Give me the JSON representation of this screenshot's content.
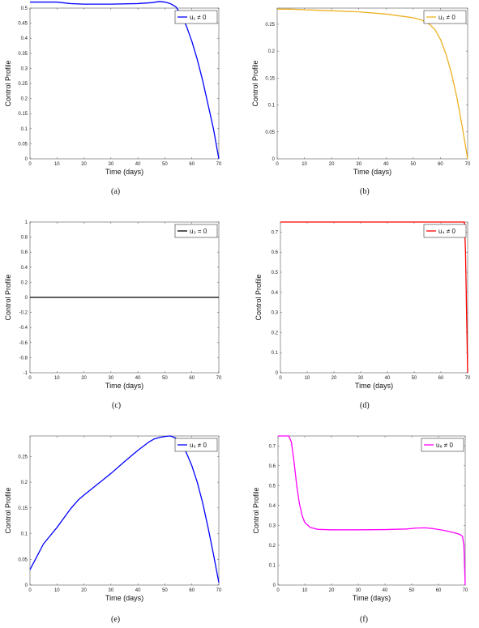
{
  "chart_data": [
    {
      "type": "line",
      "panel_label": "(a)",
      "xlabel": "Time (days)",
      "ylabel": "Control Profile",
      "xlim": [
        0,
        70
      ],
      "ylim": [
        0,
        0.5
      ],
      "xticks": [
        0,
        10,
        20,
        30,
        40,
        50,
        60,
        70
      ],
      "yticks": [
        0,
        0.05,
        0.1,
        0.15,
        0.2,
        0.25,
        0.3,
        0.35,
        0.4,
        0.45,
        0.5
      ],
      "grid": false,
      "legend": "top-right",
      "series": [
        {
          "name": "u₁ ≠ 0",
          "color": "#0000ff",
          "x": [
            0,
            10,
            15,
            20,
            30,
            40,
            45,
            48,
            50,
            52,
            54,
            56,
            58,
            60,
            62,
            64,
            66,
            68,
            70
          ],
          "y": [
            0.52,
            0.52,
            0.515,
            0.513,
            0.513,
            0.515,
            0.518,
            0.522,
            0.52,
            0.515,
            0.505,
            0.48,
            0.44,
            0.39,
            0.33,
            0.26,
            0.18,
            0.1,
            0.0
          ]
        }
      ]
    },
    {
      "type": "line",
      "panel_label": "(b)",
      "xlabel": "Time (days)",
      "ylabel": "Control Profile",
      "xlim": [
        0,
        70
      ],
      "ylim": [
        0,
        0.28
      ],
      "xticks": [
        0,
        10,
        20,
        30,
        40,
        50,
        60,
        70
      ],
      "yticks": [
        0,
        0.05,
        0.1,
        0.15,
        0.2,
        0.25
      ],
      "grid": false,
      "legend": "top-right",
      "series": [
        {
          "name": "u₂ ≠ 0",
          "color": "#edb120",
          "x": [
            0,
            5,
            10,
            20,
            30,
            40,
            50,
            53,
            56,
            58,
            60,
            62,
            64,
            66,
            68,
            70
          ],
          "y": [
            0.278,
            0.278,
            0.277,
            0.275,
            0.273,
            0.269,
            0.262,
            0.258,
            0.25,
            0.24,
            0.222,
            0.195,
            0.16,
            0.115,
            0.06,
            0.0
          ]
        }
      ]
    },
    {
      "type": "line",
      "panel_label": "(c)",
      "xlabel": "Time (days)",
      "ylabel": "Control Profile",
      "xlim": [
        0,
        70
      ],
      "ylim": [
        -1,
        1
      ],
      "xticks": [
        0,
        10,
        20,
        30,
        40,
        50,
        60,
        70
      ],
      "yticks": [
        -1,
        -0.8,
        -0.6,
        -0.4,
        -0.2,
        0,
        0.2,
        0.4,
        0.6,
        0.8,
        1
      ],
      "grid": false,
      "legend": "top-right",
      "series": [
        {
          "name": "u₃ = 0",
          "color": "#000000",
          "x": [
            0,
            70
          ],
          "y": [
            0,
            0
          ]
        }
      ]
    },
    {
      "type": "line",
      "panel_label": "(d)",
      "xlabel": "Time (days)",
      "ylabel": "Control Profile",
      "xlim": [
        0,
        70
      ],
      "ylim": [
        0,
        0.75
      ],
      "xticks": [
        0,
        10,
        20,
        30,
        40,
        50,
        60,
        70
      ],
      "yticks": [
        0,
        0.1,
        0.2,
        0.3,
        0.4,
        0.5,
        0.6,
        0.7
      ],
      "grid": false,
      "legend": "top-right",
      "series": [
        {
          "name": "u₄ ≠ 0",
          "color": "#ff0000",
          "x": [
            0,
            68.8,
            69.2,
            69.6,
            70
          ],
          "y": [
            0.75,
            0.75,
            0.6,
            0.3,
            0.0
          ]
        }
      ]
    },
    {
      "type": "line",
      "panel_label": "(e)",
      "xlabel": "Time (days)",
      "ylabel": "Control Profile",
      "xlim": [
        0,
        70
      ],
      "ylim": [
        0,
        0.29
      ],
      "xticks": [
        0,
        10,
        20,
        30,
        40,
        50,
        60,
        70
      ],
      "yticks": [
        0,
        0.05,
        0.1,
        0.15,
        0.2,
        0.25
      ],
      "grid": false,
      "legend": "top-right",
      "series": [
        {
          "name": "u₅ ≠ 0",
          "color": "#0000ff",
          "x": [
            0,
            2,
            5,
            10,
            15,
            18,
            20,
            25,
            30,
            35,
            40,
            44,
            46,
            48,
            50,
            52,
            54,
            56,
            58,
            60,
            62,
            64,
            66,
            68,
            70
          ],
          "y": [
            0.03,
            0.05,
            0.08,
            0.112,
            0.148,
            0.166,
            0.175,
            0.196,
            0.217,
            0.24,
            0.262,
            0.278,
            0.284,
            0.287,
            0.289,
            0.29,
            0.286,
            0.275,
            0.257,
            0.232,
            0.2,
            0.16,
            0.112,
            0.06,
            0.005
          ]
        }
      ]
    },
    {
      "type": "line",
      "panel_label": "(f)",
      "xlabel": "Time (days)",
      "ylabel": "Control Profile",
      "xlim": [
        0,
        70
      ],
      "ylim": [
        0,
        0.75
      ],
      "xticks": [
        0,
        10,
        20,
        30,
        40,
        50,
        60,
        70
      ],
      "yticks": [
        0,
        0.1,
        0.2,
        0.3,
        0.4,
        0.5,
        0.6,
        0.7
      ],
      "grid": false,
      "legend": "top-right",
      "series": [
        {
          "name": "u₆ ≠ 0",
          "color": "#ff00ff",
          "x": [
            0,
            4,
            5,
            6,
            7,
            8,
            9,
            10,
            12,
            15,
            20,
            30,
            40,
            48,
            52,
            55,
            58,
            62,
            66,
            68,
            69,
            69.5,
            70
          ],
          "y": [
            0.75,
            0.75,
            0.72,
            0.62,
            0.5,
            0.41,
            0.35,
            0.315,
            0.29,
            0.28,
            0.278,
            0.278,
            0.279,
            0.282,
            0.287,
            0.288,
            0.284,
            0.275,
            0.263,
            0.255,
            0.245,
            0.2,
            0.0
          ]
        }
      ]
    }
  ]
}
